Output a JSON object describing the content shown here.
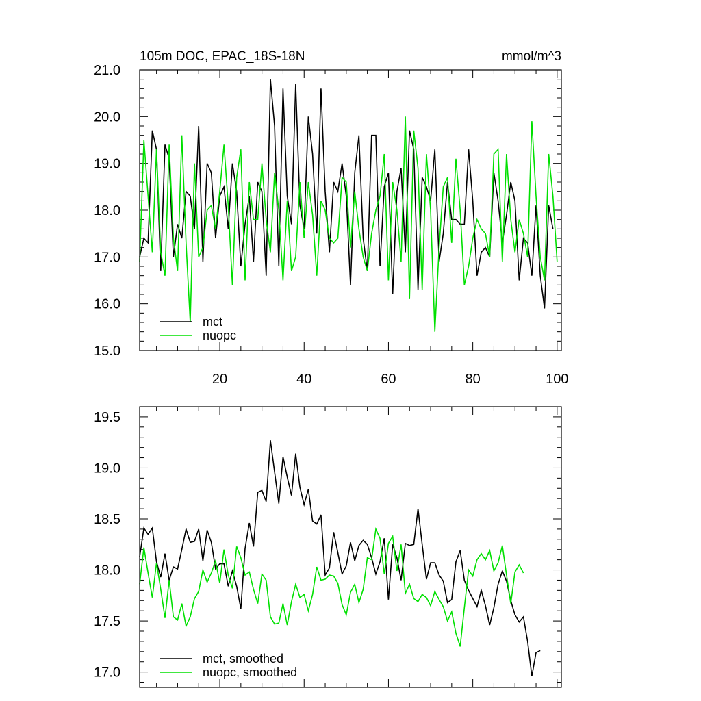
{
  "colors": {
    "mct": "#000000",
    "nuopc": "#00e000"
  },
  "chart_data": [
    {
      "type": "line",
      "title": "105m DOC, EPAC_18S-18N",
      "units": "mmol/m^3",
      "xlim": [
        1,
        101
      ],
      "ylim": [
        15.0,
        21.0
      ],
      "xticks": [
        20,
        40,
        60,
        80,
        100
      ],
      "xtick_labels": [
        "20",
        "40",
        "60",
        "80",
        "100"
      ],
      "yticks": [
        15.0,
        16.0,
        17.0,
        18.0,
        19.0,
        20.0,
        21.0
      ],
      "ytick_labels": [
        "15.0",
        "16.0",
        "17.0",
        "18.0",
        "19.0",
        "20.0",
        "21.0"
      ],
      "legend": "bottom-left",
      "x_start": 1,
      "series": [
        {
          "name": "mct",
          "color": "#000000",
          "values": [
            17.0,
            17.4,
            17.3,
            19.7,
            19.3,
            16.7,
            19.4,
            19.1,
            17.0,
            17.7,
            17.4,
            18.4,
            18.3,
            17.6,
            19.8,
            16.9,
            19.0,
            18.8,
            17.4,
            18.3,
            18.5,
            17.6,
            19.0,
            18.4,
            16.8,
            17.7,
            18.3,
            16.9,
            18.6,
            18.4,
            16.6,
            20.8,
            19.8,
            16.8,
            20.6,
            18.3,
            17.7,
            20.7,
            18.1,
            17.6,
            20.0,
            19.2,
            17.5,
            20.6,
            18.4,
            17.1,
            18.6,
            18.4,
            19.0,
            18.3,
            16.4,
            18.8,
            19.6,
            17.4,
            16.7,
            19.6,
            19.6,
            16.8,
            18.5,
            18.8,
            16.2,
            18.4,
            18.9,
            17.1,
            19.7,
            19.3,
            16.3,
            18.7,
            18.5,
            18.2,
            19.3,
            16.9,
            17.5,
            18.6,
            17.8,
            17.8,
            17.7,
            17.7,
            19.3,
            18.2,
            16.6,
            17.1,
            17.2,
            17.0,
            18.8,
            18.2,
            17.3,
            17.9,
            18.6,
            18.2,
            16.5,
            17.4,
            17.3,
            16.6,
            18.1,
            16.6,
            15.9,
            18.1,
            17.6
          ]
        },
        {
          "name": "nuopc",
          "color": "#00e000",
          "values": [
            16.9,
            19.5,
            18.3,
            17.1,
            19.3,
            17.1,
            16.6,
            19.4,
            17.4,
            16.7,
            19.6,
            17.3,
            15.6,
            19.0,
            17.0,
            17.2,
            18.0,
            18.1,
            17.6,
            18.4,
            19.4,
            18.1,
            16.4,
            18.7,
            19.3,
            16.5,
            18.6,
            17.8,
            17.8,
            19.0,
            17.8,
            17.1,
            18.8,
            18.0,
            16.5,
            18.2,
            16.7,
            17.0,
            18.6,
            17.4,
            18.6,
            17.9,
            16.6,
            18.2,
            18.0,
            17.4,
            17.3,
            17.4,
            18.7,
            18.6,
            17.2,
            18.4,
            17.6,
            17.0,
            16.7,
            17.5,
            18.0,
            18.3,
            19.2,
            16.5,
            18.6,
            18.0,
            16.9,
            20.0,
            16.1,
            19.7,
            18.9,
            16.3,
            19.2,
            18.0,
            15.4,
            17.2,
            18.5,
            18.7,
            17.3,
            19.1,
            18.0,
            16.4,
            16.8,
            17.4,
            17.8,
            17.6,
            17.5,
            17.0,
            19.2,
            19.3,
            16.9,
            19.2,
            17.8,
            17.1,
            17.8,
            17.5,
            17.0,
            19.9,
            18.3,
            17.0,
            16.5,
            19.2,
            18.3,
            16.9
          ]
        }
      ]
    },
    {
      "type": "line",
      "xlim": [
        1,
        101
      ],
      "ylim": [
        16.85,
        19.6
      ],
      "xticks": [
        20,
        40,
        60,
        80,
        100
      ],
      "yticks": [
        17.0,
        17.5,
        18.0,
        18.5,
        19.0,
        19.5
      ],
      "ytick_labels": [
        "17.0",
        "17.5",
        "18.0",
        "18.5",
        "19.0",
        "19.5"
      ],
      "legend": "bottom-left",
      "x_start": 1,
      "series": [
        {
          "name": "mct, smoothed",
          "color": "#000000",
          "values": [
            18.13,
            18.41,
            18.35,
            18.41,
            18.08,
            17.93,
            18.16,
            17.9,
            18.03,
            18.01,
            18.2,
            18.4,
            18.27,
            18.28,
            18.4,
            18.09,
            18.39,
            18.27,
            18.01,
            18.06,
            18.06,
            17.84,
            17.99,
            17.84,
            17.62,
            18.21,
            18.46,
            18.23,
            18.76,
            18.78,
            18.67,
            19.27,
            18.96,
            18.65,
            19.11,
            18.91,
            18.73,
            19.14,
            18.81,
            18.64,
            18.79,
            18.48,
            18.45,
            18.54,
            17.95,
            18.02,
            18.37,
            18.17,
            17.96,
            18.04,
            18.27,
            18.09,
            18.24,
            18.29,
            18.25,
            18.12,
            17.96,
            18.08,
            18.31,
            17.71,
            18.25,
            18.12,
            17.9,
            18.26,
            18.24,
            18.25,
            18.6,
            18.25,
            17.91,
            18.07,
            18.07,
            17.95,
            17.89,
            17.68,
            17.71,
            18.08,
            18.19,
            17.9,
            17.8,
            17.72,
            17.64,
            17.8,
            17.65,
            17.46,
            17.63,
            17.86,
            17.99,
            17.89,
            17.7,
            17.56,
            17.49,
            17.54,
            17.3,
            16.96,
            17.19,
            17.21
          ]
        },
        {
          "name": "nuopc, smoothed",
          "color": "#00e000",
          "values": [
            17.86,
            18.22,
            17.97,
            17.73,
            18.07,
            17.81,
            17.53,
            17.9,
            17.54,
            17.51,
            17.67,
            17.45,
            17.54,
            17.72,
            17.79,
            18.0,
            17.88,
            17.97,
            18.09,
            17.87,
            18.2,
            17.95,
            17.82,
            18.23,
            18.12,
            17.95,
            17.98,
            17.81,
            17.67,
            17.96,
            17.9,
            17.54,
            17.47,
            17.48,
            17.67,
            17.46,
            17.69,
            17.86,
            17.73,
            17.76,
            17.6,
            17.76,
            18.03,
            17.9,
            17.91,
            17.95,
            17.94,
            17.87,
            17.66,
            17.56,
            17.78,
            17.86,
            17.68,
            17.81,
            18.12,
            18.1,
            18.4,
            18.31,
            17.96,
            18.26,
            18.33,
            17.99,
            18.25,
            17.77,
            17.86,
            17.72,
            17.69,
            17.76,
            17.73,
            17.65,
            17.79,
            17.71,
            17.64,
            17.5,
            17.59,
            17.38,
            17.25,
            17.63,
            18.0,
            17.94,
            18.1,
            18.16,
            18.1,
            18.19,
            17.99,
            18.07,
            18.24,
            17.95,
            17.67,
            17.98,
            18.05,
            17.97
          ]
        }
      ]
    }
  ]
}
